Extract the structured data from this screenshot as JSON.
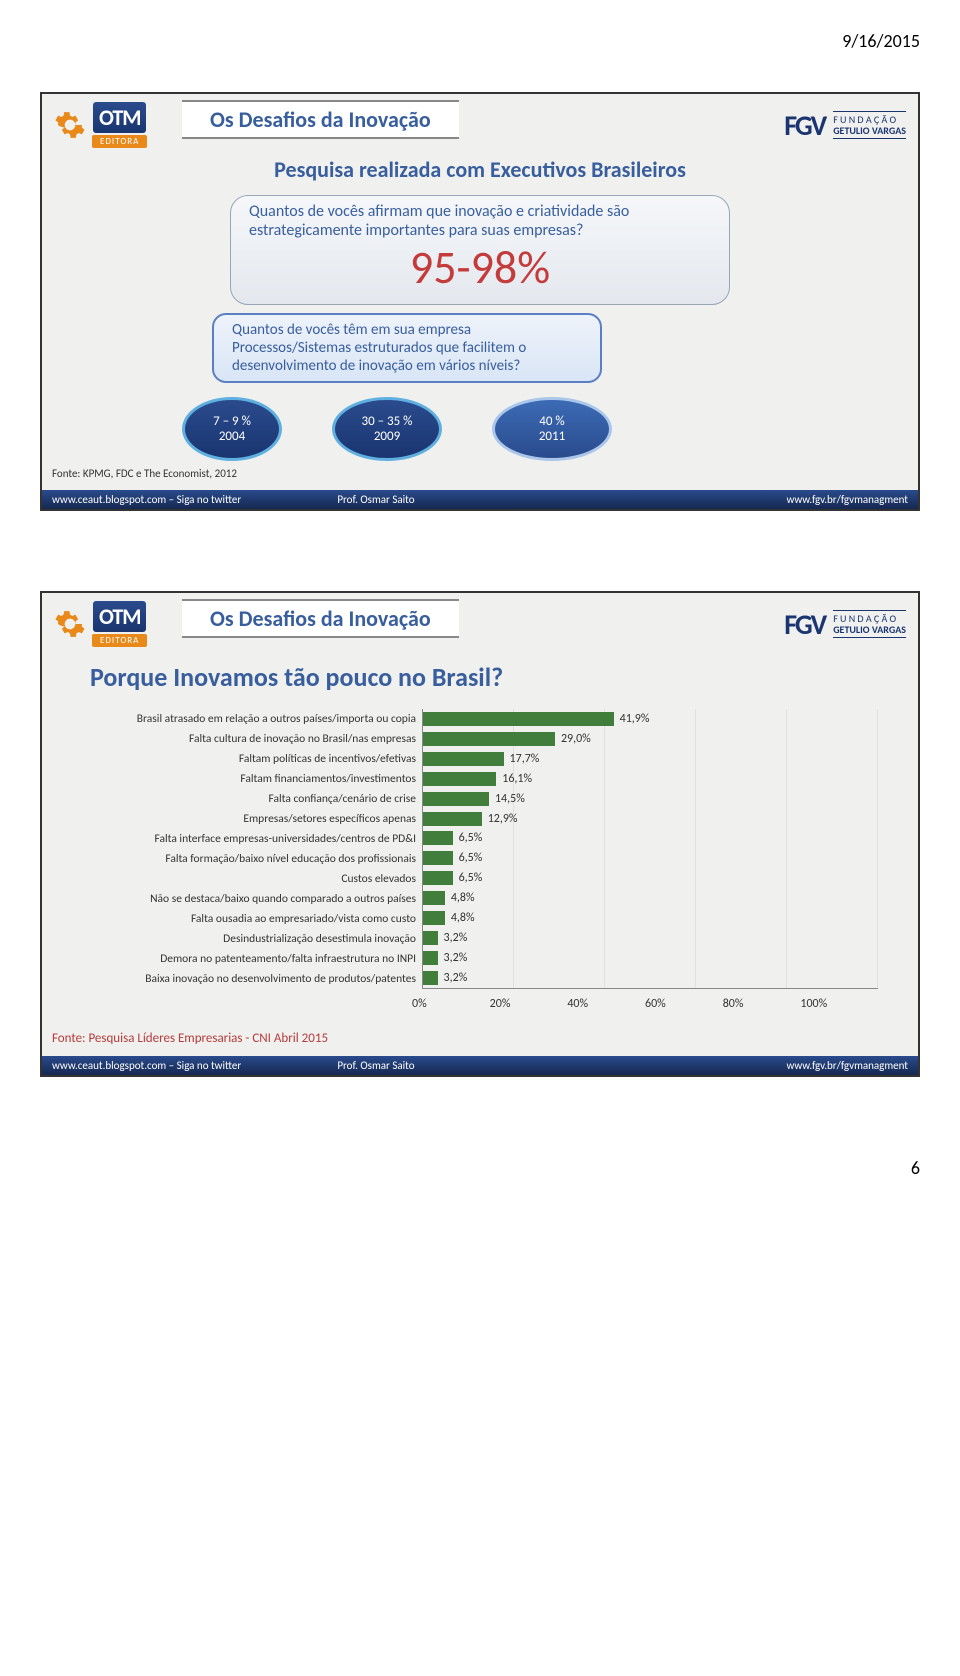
{
  "date": "9/16/2015",
  "page_number": "6",
  "slide1": {
    "title": "Os Desafios da Inovação",
    "otm": "OTM",
    "editora": "EDITORA",
    "fgv_mark": "FGV",
    "fgv_line1": "F U N D A Ç Ã O",
    "fgv_line2": "GETULIO VARGAS",
    "subtitle": "Pesquisa realizada com Executivos Brasileiros",
    "q1": "Quantos de vocês afirmam que inovação e criatividade são estrategicamente importantes para suas empresas?",
    "big_pct": "95-98%",
    "q2": "Quantos de vocês têm em sua empresa Processos/Sistemas estruturados que facilitem o desenvolvimento de inovação em vários níveis?",
    "ovals": [
      {
        "line1": "7 – 9 %",
        "line2": "2004"
      },
      {
        "line1": "30 – 35 %",
        "line2": "2009"
      },
      {
        "line1": "40 %",
        "line2": "2011"
      }
    ],
    "source": "Fonte: KPMG, FDC e The Economist, 2012",
    "footer_left": "www.ceaut.blogspot.com – Siga no twitter",
    "footer_center": "Prof.   Osmar Saito",
    "footer_right": "www.fgv.br/fgvmanagment"
  },
  "slide2": {
    "title": "Os Desafios da Inovação",
    "question": "Porque Inovamos tão pouco no Brasil?",
    "chart": {
      "type": "bar",
      "bar_color": "#417e3b",
      "background_color": "#f0f0ee",
      "grid_color": "#e0e0e0",
      "label_fontsize": 11.5,
      "value_fontsize": 12,
      "xlim": [
        0,
        100
      ],
      "xtick_step": 20,
      "xticks": [
        "0%",
        "20%",
        "40%",
        "60%",
        "80%",
        "100%"
      ],
      "rows": [
        {
          "label": "Brasil atrasado em relação a outros países/importa ou copia",
          "value": 41.9,
          "text": "41,9%"
        },
        {
          "label": "Falta cultura de inovação no Brasil/nas empresas",
          "value": 29.0,
          "text": "29,0%"
        },
        {
          "label": "Faltam políticas de incentivos/efetivas",
          "value": 17.7,
          "text": "17,7%"
        },
        {
          "label": "Faltam financiamentos/investimentos",
          "value": 16.1,
          "text": "16,1%"
        },
        {
          "label": "Falta confiança/cenário de crise",
          "value": 14.5,
          "text": "14,5%"
        },
        {
          "label": "Empresas/setores específicos apenas",
          "value": 12.9,
          "text": "12,9%"
        },
        {
          "label": "Falta interface empresas-universidades/centros de PD&I",
          "value": 6.5,
          "text": "6,5%"
        },
        {
          "label": "Falta formação/baixo nível educação dos profissionais",
          "value": 6.5,
          "text": "6,5%"
        },
        {
          "label": "Custos elevados",
          "value": 6.5,
          "text": "6,5%"
        },
        {
          "label": "Não se destaca/baixo quando comparado a outros países",
          "value": 4.8,
          "text": "4,8%"
        },
        {
          "label": "Falta ousadia ao empresariado/vista como custo",
          "value": 4.8,
          "text": "4,8%"
        },
        {
          "label": "Desindustrialização desestimula inovação",
          "value": 3.2,
          "text": "3,2%"
        },
        {
          "label": "Demora no patenteamento/falta infraestrutura no INPI",
          "value": 3.2,
          "text": "3,2%"
        },
        {
          "label": "Baixa inovação no desenvolvimento de produtos/patentes",
          "value": 3.2,
          "text": "3,2%"
        }
      ]
    },
    "source": "Fonte: Pesquisa Líderes Empresarias - CNI  Abril 2015",
    "footer_left": "www.ceaut.blogspot.com – Siga no twitter",
    "footer_center": "Prof.   Osmar Saito",
    "footer_right": "www.fgv.br/fgvmanagment"
  }
}
